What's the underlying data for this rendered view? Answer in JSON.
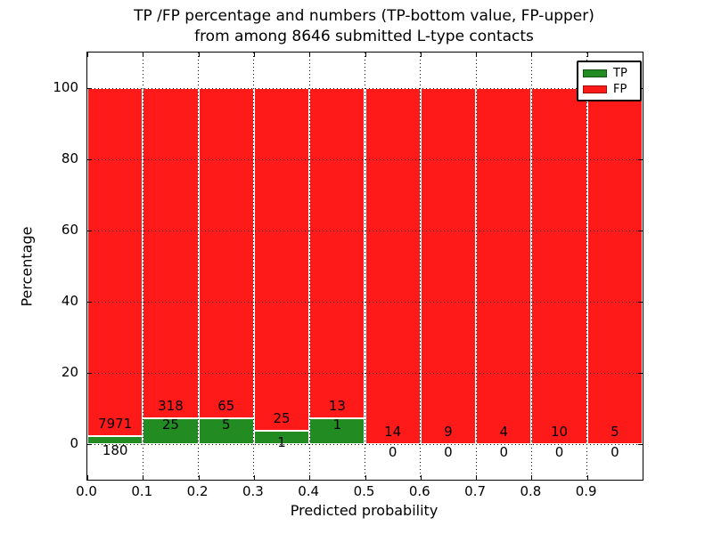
{
  "title": {
    "line1": "TP /FP percentage and numbers (TP-bottom value, FP-upper)",
    "line2": "from among 8646 submitted L-type contacts"
  },
  "axes": {
    "xlabel": "Predicted probability",
    "ylabel": "Percentage",
    "x_tick_labels": [
      "0.0",
      "0.1",
      "0.2",
      "0.3",
      "0.4",
      "0.5",
      "0.6",
      "0.7",
      "0.8",
      "0.9"
    ],
    "y_tick_values": [
      0,
      20,
      40,
      60,
      80,
      100
    ],
    "xlim": [
      0.0,
      1.0
    ],
    "ylim": [
      -10,
      110
    ],
    "grid": "dotted-black-both-axes"
  },
  "legend": {
    "position": "upper-right",
    "items": [
      {
        "label": "TP",
        "color": "#228b22"
      },
      {
        "label": "FP",
        "color": "#ff1a1a"
      }
    ]
  },
  "chart_data": {
    "type": "bar",
    "stacked": true,
    "normalized_to_percent": 100,
    "title": "TP /FP percentage and numbers (TP-bottom value, FP-upper) from among 8646 submitted L-type contacts",
    "xlabel": "Predicted probability",
    "ylabel": "Percentage",
    "total_contacts": 8646,
    "bin_width": 0.1,
    "categories": [
      "0.0-0.1",
      "0.1-0.2",
      "0.2-0.3",
      "0.3-0.4",
      "0.4-0.5",
      "0.5-0.6",
      "0.6-0.7",
      "0.7-0.8",
      "0.8-0.9",
      "0.9-1.0"
    ],
    "series": [
      {
        "name": "TP",
        "color": "#228b22",
        "counts": [
          180,
          25,
          5,
          1,
          1,
          0,
          0,
          0,
          0,
          0
        ]
      },
      {
        "name": "FP",
        "color": "#ff1a1a",
        "counts": [
          7971,
          318,
          65,
          25,
          13,
          14,
          9,
          4,
          10,
          5
        ]
      }
    ],
    "tp_percent_of_bin": [
      2.2,
      7.3,
      7.1,
      3.8,
      7.1,
      0,
      0,
      0,
      0,
      0
    ],
    "fp_percent_of_bin": [
      97.8,
      92.7,
      92.9,
      96.2,
      92.9,
      100,
      100,
      100,
      100,
      100
    ],
    "xlim": [
      0.0,
      1.0
    ],
    "ylim": [
      -10,
      110
    ],
    "grid": true,
    "legend_position": "upper-right"
  }
}
